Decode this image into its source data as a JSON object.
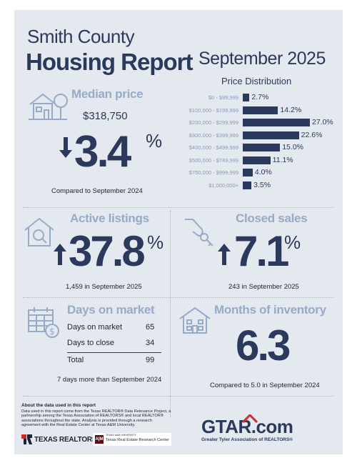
{
  "header": {
    "title_line1": "Smith County",
    "title_line2": "Housing Report",
    "month": "September 2025"
  },
  "median_price": {
    "heading": "Median price",
    "value": "$318,750",
    "change": "3.4",
    "pct_sign": "%",
    "direction": "down",
    "note": "Compared to September 2024"
  },
  "price_distribution": {
    "title": "Price Distribution",
    "chart_data": {
      "type": "bar",
      "orientation": "horizontal",
      "categories": [
        "$0 - $99,999",
        "$100,000 - $199,999",
        "$200,000 - $299,999",
        "$300,000 - $399,999",
        "$400,000 - $499,999",
        "$500,000 - $749,999",
        "$750,000 - $999,999",
        "$1,000,000+"
      ],
      "values": [
        2.7,
        14.2,
        27.0,
        22.6,
        15.0,
        11.1,
        4.0,
        3.5
      ],
      "value_labels": [
        "2.7%",
        "14.2%",
        "27.0%",
        "22.6%",
        "15.0%",
        "11.1%",
        "4.0%",
        "3.5%"
      ],
      "xlim": [
        0,
        27.0
      ]
    }
  },
  "active_listings": {
    "heading": "Active listings",
    "change": "37.8",
    "pct_sign": "%",
    "direction": "up",
    "note": "1,459 in September 2025"
  },
  "closed_sales": {
    "heading": "Closed sales",
    "change": "7.1",
    "pct_sign": "%",
    "direction": "up",
    "note": "243 in September 2025"
  },
  "days_on_market": {
    "heading": "Days on market",
    "rows": [
      {
        "label": "Days on market",
        "value": "65"
      },
      {
        "label": "Days to close",
        "value": "34"
      }
    ],
    "total_label": "Total",
    "total_value": "99",
    "note": "7 days more than September 2024"
  },
  "months_inventory": {
    "heading": "Months of inventory",
    "value": "6.3",
    "note": "Compared to 5.0 in September 2024"
  },
  "footer": {
    "about_title": "About the data used in this report",
    "about_text": "Data used in this report come from the Texas REALTOR® Data Relevance Project, a partnership among the Texas Association of REALTORS® and local REALTOR® associations throughout the state. Analysis is provided through a research agreement with the Real Estate Center at Texas A&M University.",
    "texas_realtors": "TEXAS REALTORS",
    "tamu_small": "TEXAS A&M UNIVERSITY",
    "tamu_center": "Texas Real Estate Research Center",
    "gtar_logo": "GTAR.com",
    "gtar_tagline": "Greater Tyler Association of REALTORS®"
  },
  "colors": {
    "navy": "#2b3a5c",
    "light_blue": "#97aac7",
    "background": "#e4e8ef",
    "gtar_red": "#c62f2f"
  }
}
